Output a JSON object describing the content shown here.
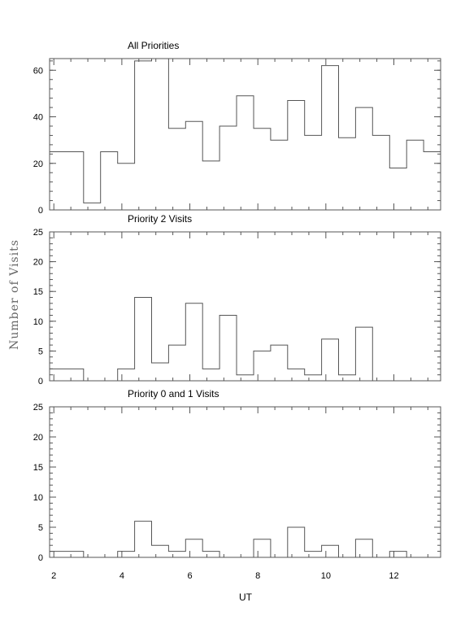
{
  "chart_data": [
    {
      "type": "histogram",
      "title": "All Priorities",
      "x": [
        1.875,
        2.375,
        2.875,
        3.375,
        3.875,
        4.375,
        4.875,
        5.375,
        5.875,
        6.375,
        6.875,
        7.375,
        7.875,
        8.375,
        8.875,
        9.375,
        9.875,
        10.375,
        10.875,
        11.375,
        11.875,
        12.375,
        12.875,
        13.375
      ],
      "values": [
        25,
        25,
        3,
        25,
        20,
        64,
        65,
        35,
        38,
        21,
        36,
        49,
        35,
        30,
        47,
        32,
        62,
        31,
        44,
        32,
        18,
        30,
        25,
        26
      ],
      "ylim": [
        0,
        65
      ],
      "yticks": [
        "0",
        "20",
        "40",
        "60"
      ]
    },
    {
      "type": "histogram",
      "title": "Priority 2 Visits",
      "x": [
        1.875,
        2.375,
        2.875,
        3.375,
        3.875,
        4.375,
        4.875,
        5.375,
        5.875,
        6.375,
        6.875,
        7.375,
        7.875,
        8.375,
        8.875,
        9.375,
        9.875,
        10.375,
        10.875,
        11.375,
        11.875,
        12.375,
        12.875,
        13.375
      ],
      "values": [
        2,
        2,
        0,
        0,
        2,
        14,
        3,
        6,
        13,
        2,
        11,
        1,
        5,
        6,
        2,
        1,
        7,
        1,
        9,
        0,
        0,
        0,
        0,
        0
      ],
      "ylim": [
        0,
        25
      ],
      "yticks": [
        "0",
        "5",
        "10",
        "15",
        "20",
        "25"
      ]
    },
    {
      "type": "histogram",
      "title": "Priority 0 and 1 Visits",
      "x": [
        1.875,
        2.375,
        2.875,
        3.375,
        3.875,
        4.375,
        4.875,
        5.375,
        5.875,
        6.375,
        6.875,
        7.375,
        7.875,
        8.375,
        8.875,
        9.375,
        9.875,
        10.375,
        10.875,
        11.375,
        11.875,
        12.375,
        12.875,
        13.375
      ],
      "values": [
        1,
        1,
        0,
        0,
        1,
        6,
        2,
        1,
        3,
        1,
        0,
        0,
        3,
        0,
        5,
        1,
        2,
        0,
        3,
        0,
        1,
        0,
        0,
        2
      ],
      "ylim": [
        0,
        25
      ],
      "yticks": [
        "0",
        "5",
        "10",
        "15",
        "20",
        "25"
      ]
    }
  ],
  "shared": {
    "xlabel": "UT",
    "ylabel": "Number of Visits",
    "xlim": [
      1.875,
      13.375
    ],
    "bin_width": 0.5,
    "xticks": [
      "2",
      "4",
      "6",
      "8",
      "10",
      "12"
    ],
    "line_color": "#555555"
  }
}
